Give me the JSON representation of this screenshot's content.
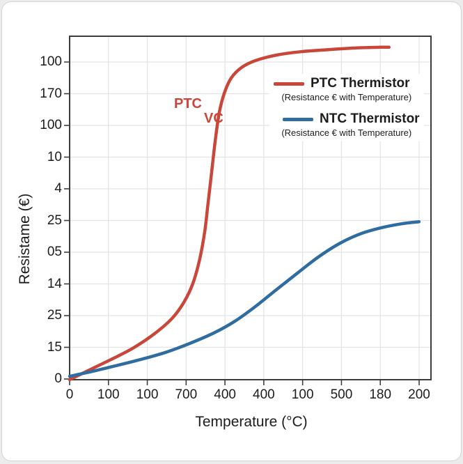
{
  "colors": {
    "ptc_red": "#c9463a",
    "ntc_blue": "#2f6ca0",
    "grid": "#e3e3e3",
    "axis": "#3c3c3c",
    "text": "#1c1c1c"
  },
  "chart_data": {
    "type": "line",
    "title": "",
    "xlabel": "Temperature (°C)",
    "ylabel": "Resistame (€)",
    "x_tick_labels": [
      "0",
      "100",
      "100",
      "700",
      "400",
      "400",
      "100",
      "500",
      "180",
      "200"
    ],
    "y_tick_labels": [
      "100",
      "170",
      "100",
      "10",
      "4",
      "25",
      "05",
      "14",
      "25",
      "15",
      "0"
    ],
    "grid": true,
    "legend_position": "upper right",
    "series": [
      {
        "name": "PTC Thermistor",
        "subtitle": "(Resistance € with Temperature)",
        "color": "#c9463a",
        "shape": "steep sigmoid rising sharply near x-fraction 0.38, saturating high",
        "points": [
          [
            0.0,
            0.0
          ],
          [
            0.062,
            0.032
          ],
          [
            0.119,
            0.061
          ],
          [
            0.177,
            0.093
          ],
          [
            0.235,
            0.134
          ],
          [
            0.283,
            0.178
          ],
          [
            0.316,
            0.225
          ],
          [
            0.341,
            0.28
          ],
          [
            0.36,
            0.351
          ],
          [
            0.374,
            0.432
          ],
          [
            0.383,
            0.513
          ],
          [
            0.393,
            0.604
          ],
          [
            0.403,
            0.696
          ],
          [
            0.414,
            0.777
          ],
          [
            0.428,
            0.834
          ],
          [
            0.447,
            0.878
          ],
          [
            0.476,
            0.909
          ],
          [
            0.514,
            0.929
          ],
          [
            0.572,
            0.945
          ],
          [
            0.64,
            0.955
          ],
          [
            0.717,
            0.961
          ],
          [
            0.794,
            0.966
          ],
          [
            0.861,
            0.968
          ],
          [
            0.884,
            0.968
          ]
        ]
      },
      {
        "name": "NTC Thermistor",
        "subtitle": "(Resistance € with Temperature)",
        "color": "#2f6ca0",
        "shape": "gentle sigmoid rising to mid-level plateau at right",
        "points": [
          [
            0.0,
            0.01
          ],
          [
            0.062,
            0.024
          ],
          [
            0.129,
            0.041
          ],
          [
            0.197,
            0.059
          ],
          [
            0.264,
            0.079
          ],
          [
            0.331,
            0.105
          ],
          [
            0.399,
            0.136
          ],
          [
            0.457,
            0.17
          ],
          [
            0.514,
            0.213
          ],
          [
            0.572,
            0.262
          ],
          [
            0.63,
            0.31
          ],
          [
            0.688,
            0.357
          ],
          [
            0.746,
            0.396
          ],
          [
            0.803,
            0.424
          ],
          [
            0.861,
            0.442
          ],
          [
            0.919,
            0.454
          ],
          [
            0.967,
            0.46
          ]
        ]
      }
    ],
    "annotations": [
      {
        "text": "PTC"
      },
      {
        "text": "VC"
      }
    ]
  }
}
